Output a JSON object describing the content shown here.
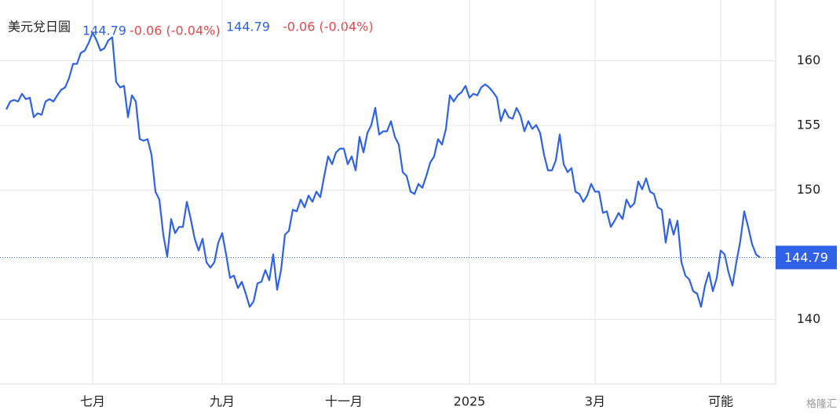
{
  "chart_data": {
    "type": "line",
    "title": "美元兌日圓",
    "price": "144.79",
    "change": "-0.06 (-0.04%)",
    "watermark": "格隆汇",
    "categories": [
      null,
      null,
      null,
      null,
      null,
      null,
      null,
      null,
      null,
      null,
      null,
      null,
      null,
      null,
      null,
      null,
      null,
      null,
      null,
      null,
      null,
      null,
      "七月",
      null,
      null,
      null,
      null,
      null,
      null,
      null,
      null,
      null,
      null,
      null,
      null,
      null,
      null,
      null,
      null,
      null,
      null,
      null,
      null,
      null,
      null,
      null,
      null,
      null,
      null,
      null,
      null,
      null,
      null,
      null,
      null,
      "九月",
      null,
      null,
      null,
      null,
      null,
      null,
      null,
      null,
      null,
      null,
      null,
      null,
      null,
      null,
      null,
      null,
      null,
      null,
      null,
      null,
      null,
      null,
      null,
      null,
      null,
      null,
      null,
      null,
      null,
      null,
      "十一月",
      null,
      null,
      null,
      null,
      null,
      null,
      null,
      null,
      null,
      null,
      null,
      null,
      null,
      null,
      null,
      null,
      null,
      null,
      null,
      null,
      null,
      null,
      null,
      null,
      null,
      null,
      null,
      null,
      null,
      null,
      null,
      "2025",
      null,
      null,
      null,
      null,
      null,
      null,
      null,
      null,
      null,
      null,
      null,
      null,
      null,
      null,
      null,
      null,
      null,
      null,
      null,
      null,
      null,
      null,
      null,
      null,
      null,
      null,
      null,
      null,
      null,
      null,
      null,
      "3月",
      null,
      null,
      null,
      null,
      null,
      null,
      null,
      null,
      null,
      null,
      null,
      null,
      null,
      null,
      null,
      null,
      null,
      null,
      null,
      null,
      null,
      null,
      null,
      null,
      null,
      null,
      null,
      null,
      null,
      null,
      null,
      "可能",
      null,
      null,
      null,
      null,
      null,
      null,
      null,
      null,
      null,
      null
    ],
    "series": [
      {
        "name": "美元兌日圓",
        "color": "#2f62e8",
        "values": [
          156.24,
          156.85,
          156.97,
          156.85,
          157.45,
          157.03,
          157.15,
          155.64,
          155.94,
          155.82,
          156.85,
          157.03,
          156.85,
          157.33,
          157.76,
          157.94,
          158.67,
          159.76,
          159.76,
          160.61,
          160.79,
          161.39,
          162.18,
          161.58,
          160.79,
          160.97,
          161.58,
          161.82,
          158.36,
          157.94,
          158.06,
          155.64,
          157.33,
          156.85,
          153.94,
          153.82,
          153.94,
          152.73,
          149.88,
          149.27,
          146.55,
          144.85,
          147.76,
          146.67,
          147.15,
          147.15,
          149.09,
          147.76,
          146.24,
          145.33,
          146.24,
          144.42,
          144.0,
          144.42,
          145.94,
          146.67,
          145.03,
          143.21,
          143.39,
          142.42,
          142.91,
          142.0,
          140.97,
          141.39,
          142.79,
          142.91,
          143.82,
          143.03,
          145.03,
          142.3,
          143.82,
          146.55,
          146.85,
          148.48,
          148.36,
          149.27,
          148.67,
          149.58,
          149.09,
          149.88,
          149.45,
          151.09,
          152.61,
          152.0,
          152.91,
          153.21,
          153.21,
          152.0,
          152.61,
          151.52,
          154.12,
          152.91,
          154.42,
          155.03,
          156.36,
          154.3,
          154.55,
          154.55,
          155.33,
          154.12,
          153.52,
          151.39,
          151.09,
          149.88,
          149.7,
          150.48,
          150.18,
          151.09,
          152.12,
          152.61,
          153.94,
          153.52,
          154.73,
          157.33,
          156.85,
          157.33,
          157.58,
          158.06,
          157.15,
          157.45,
          157.33,
          157.94,
          158.18,
          157.94,
          157.58,
          157.15,
          155.33,
          156.24,
          155.64,
          155.52,
          156.36,
          155.76,
          154.55,
          155.33,
          154.73,
          155.03,
          154.42,
          152.73,
          151.52,
          151.52,
          152.3,
          154.3,
          152.0,
          151.39,
          151.7,
          149.88,
          149.7,
          149.09,
          149.58,
          150.48,
          149.88,
          149.88,
          148.24,
          148.36,
          147.15,
          147.64,
          148.24,
          147.76,
          149.27,
          148.67,
          148.97,
          150.67,
          150.06,
          150.91,
          149.88,
          149.7,
          148.67,
          148.48,
          145.94,
          147.76,
          146.55,
          147.64,
          144.42,
          143.39,
          143.09,
          142.18,
          142.0,
          140.97,
          142.61,
          143.64,
          142.18,
          143.21,
          145.33,
          145.03,
          143.64,
          142.61,
          144.42,
          146.06,
          148.36,
          147.15,
          145.82,
          145.03,
          144.79
        ]
      }
    ],
    "ylim": [
      135,
      164.7
    ],
    "yticks": [
      140,
      150,
      155,
      160
    ],
    "grid": true
  }
}
